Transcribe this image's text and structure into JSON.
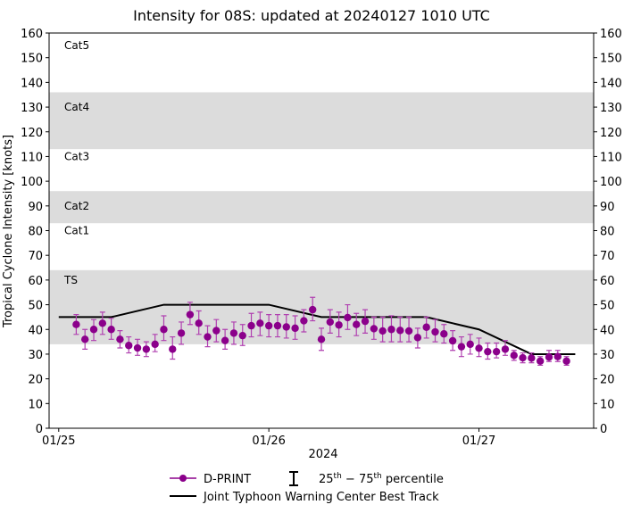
{
  "chart_data": {
    "type": "scatter",
    "title": "Intensity for 08S: updated at 20240127 1010 UTC",
    "ylabel": "Tropical Cyclone Intensity [knots]",
    "xlabel": "2024",
    "ylim": [
      0,
      160
    ],
    "yticks": [
      0,
      10,
      20,
      30,
      40,
      50,
      60,
      70,
      80,
      90,
      100,
      110,
      120,
      130,
      140,
      150,
      160
    ],
    "xlim": [
      "2024-01-24T22:54Z",
      "2024-01-27T13:06Z"
    ],
    "xticks": [
      {
        "t": "2024-01-25T00:00Z",
        "label": "01/25"
      },
      {
        "t": "2024-01-26T00:00Z",
        "label": "01/26"
      },
      {
        "t": "2024-01-27T00:00Z",
        "label": "01/27"
      }
    ],
    "grid": false,
    "bands": [
      {
        "label": "TS",
        "from": 34,
        "to": 64,
        "shaded": true,
        "label_at": 60
      },
      {
        "label": "Cat1",
        "from": 64,
        "to": 83,
        "shaded": false,
        "label_at": 80
      },
      {
        "label": "Cat2",
        "from": 83,
        "to": 96,
        "shaded": true,
        "label_at": 90
      },
      {
        "label": "Cat3",
        "from": 96,
        "to": 113,
        "shaded": false,
        "label_at": 110
      },
      {
        "label": "Cat4",
        "from": 113,
        "to": 136,
        "shaded": true,
        "label_at": 130
      },
      {
        "label": "Cat5",
        "from": 136,
        "to": 160,
        "shaded": false,
        "label_at": 155
      }
    ],
    "colors": {
      "dprint": "#8b008b",
      "errorbar": "#b040b0",
      "besttrack": "#000000",
      "band": "#dcdcdc"
    },
    "series": [
      {
        "name": "D-PRINT",
        "first_time": "2024-01-25T02:00Z",
        "interval_hours": 1,
        "values": [
          42,
          36,
          40,
          42.5,
          40,
          36,
          33.5,
          32.5,
          32,
          34,
          40,
          32,
          38.5,
          46,
          42.5,
          37,
          39.5,
          35.5,
          38.5,
          37.5,
          41.5,
          42.5,
          41.5,
          41.5,
          41,
          40.5,
          43.5,
          48,
          36,
          43,
          41.8,
          44.8,
          42,
          43.3,
          40.3,
          39.4,
          40,
          39.6,
          39.4,
          36.7,
          40.9,
          39,
          38.2,
          35.4,
          33,
          34,
          32.4,
          31,
          31,
          32,
          29.5,
          28.5,
          28.4,
          27.2,
          28.8,
          29,
          27.2
        ],
        "p25": [
          38,
          32,
          35.5,
          38,
          36,
          32.5,
          30.5,
          29.5,
          29,
          31,
          35.5,
          28,
          34,
          42,
          38,
          33,
          35,
          32,
          34,
          33.5,
          37,
          37.5,
          37,
          37,
          36.5,
          36,
          39,
          43.5,
          31.5,
          38.5,
          37,
          40,
          37.5,
          38.5,
          36,
          35,
          35,
          35,
          35,
          32.5,
          36.5,
          35,
          34.5,
          31.5,
          29,
          30,
          29,
          28,
          28.5,
          29.5,
          27.5,
          26.5,
          26.5,
          25.5,
          27,
          27,
          25.5
        ],
        "p75": [
          46,
          40,
          44,
          47,
          44.5,
          39.5,
          37,
          36,
          35,
          38,
          45.5,
          37,
          43,
          51,
          47.5,
          41.5,
          44,
          40,
          43,
          42,
          46.5,
          47,
          46,
          46,
          46,
          45.5,
          48,
          53,
          40.5,
          48,
          47,
          50,
          46.5,
          48,
          45,
          45,
          45.5,
          45,
          45,
          40.5,
          45,
          44,
          42,
          39.5,
          37,
          38,
          36.5,
          34.5,
          34.5,
          35.5,
          31.5,
          30.5,
          30.5,
          29,
          31.5,
          31.5,
          29
        ]
      },
      {
        "name": "Joint Typhoon Warning Center Best Track",
        "points": [
          [
            "2024-01-25T00:00Z",
            45
          ],
          [
            "2024-01-25T06:00Z",
            45
          ],
          [
            "2024-01-25T12:00Z",
            50
          ],
          [
            "2024-01-26T00:00Z",
            50
          ],
          [
            "2024-01-26T06:00Z",
            45
          ],
          [
            "2024-01-26T18:00Z",
            45
          ],
          [
            "2024-01-27T00:00Z",
            40
          ],
          [
            "2024-01-27T06:00Z",
            30
          ],
          [
            "2024-01-27T11:00Z",
            30
          ]
        ]
      }
    ],
    "legend": {
      "placement": "bottom",
      "entries": [
        "D-PRINT",
        "Joint Typhoon Warning Center Best Track"
      ],
      "percentile_label": {
        "lo": "25",
        "hi": "75",
        "sup": "th",
        "text": "percentile"
      }
    }
  }
}
